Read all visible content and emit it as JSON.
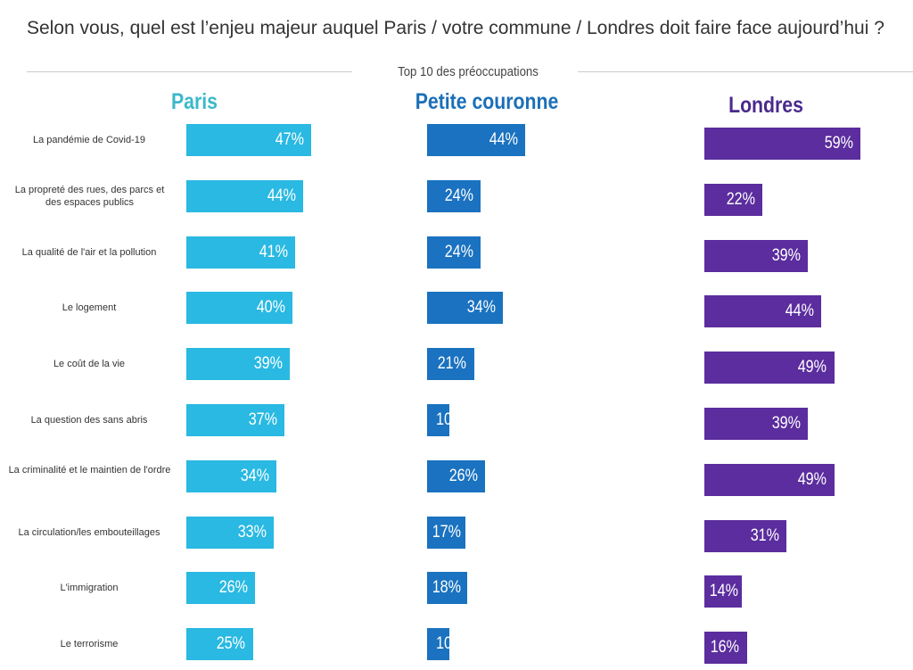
{
  "chart_data": {
    "type": "bar",
    "orientation": "horizontal",
    "title": "Selon vous, quel est l’enjeu majeur auquel Paris / votre commune / Londres doit faire face aujourd’hui ?",
    "subtitle": "Top 10 des préoccupations",
    "categories": [
      "La pandémie de Covid-19",
      "La propreté des rues, des parcs et des espaces publics",
      "La qualité de l'air et la pollution",
      "Le logement",
      "Le coût de la vie",
      "La question des sans abris",
      "La criminalité et le maintien de l'ordre",
      "La circulation/les embouteillages",
      "L'immigration",
      "Le terrorisme"
    ],
    "series": [
      {
        "name": "Paris",
        "color": "#29b9e2",
        "header_color": "#3bb8c9",
        "values": [
          47,
          44,
          41,
          40,
          39,
          37,
          34,
          33,
          26,
          25
        ]
      },
      {
        "name": "Petite couronne",
        "color": "#1a72c0",
        "header_color": "#1a6fb8",
        "values": [
          44,
          24,
          24,
          34,
          21,
          10,
          26,
          17,
          18,
          10
        ]
      },
      {
        "name": "Londres",
        "color": "#5b2d9e",
        "header_color": "#4a2a8c",
        "values": [
          59,
          22,
          39,
          44,
          49,
          39,
          49,
          31,
          14,
          16
        ]
      }
    ],
    "unit": "%"
  }
}
